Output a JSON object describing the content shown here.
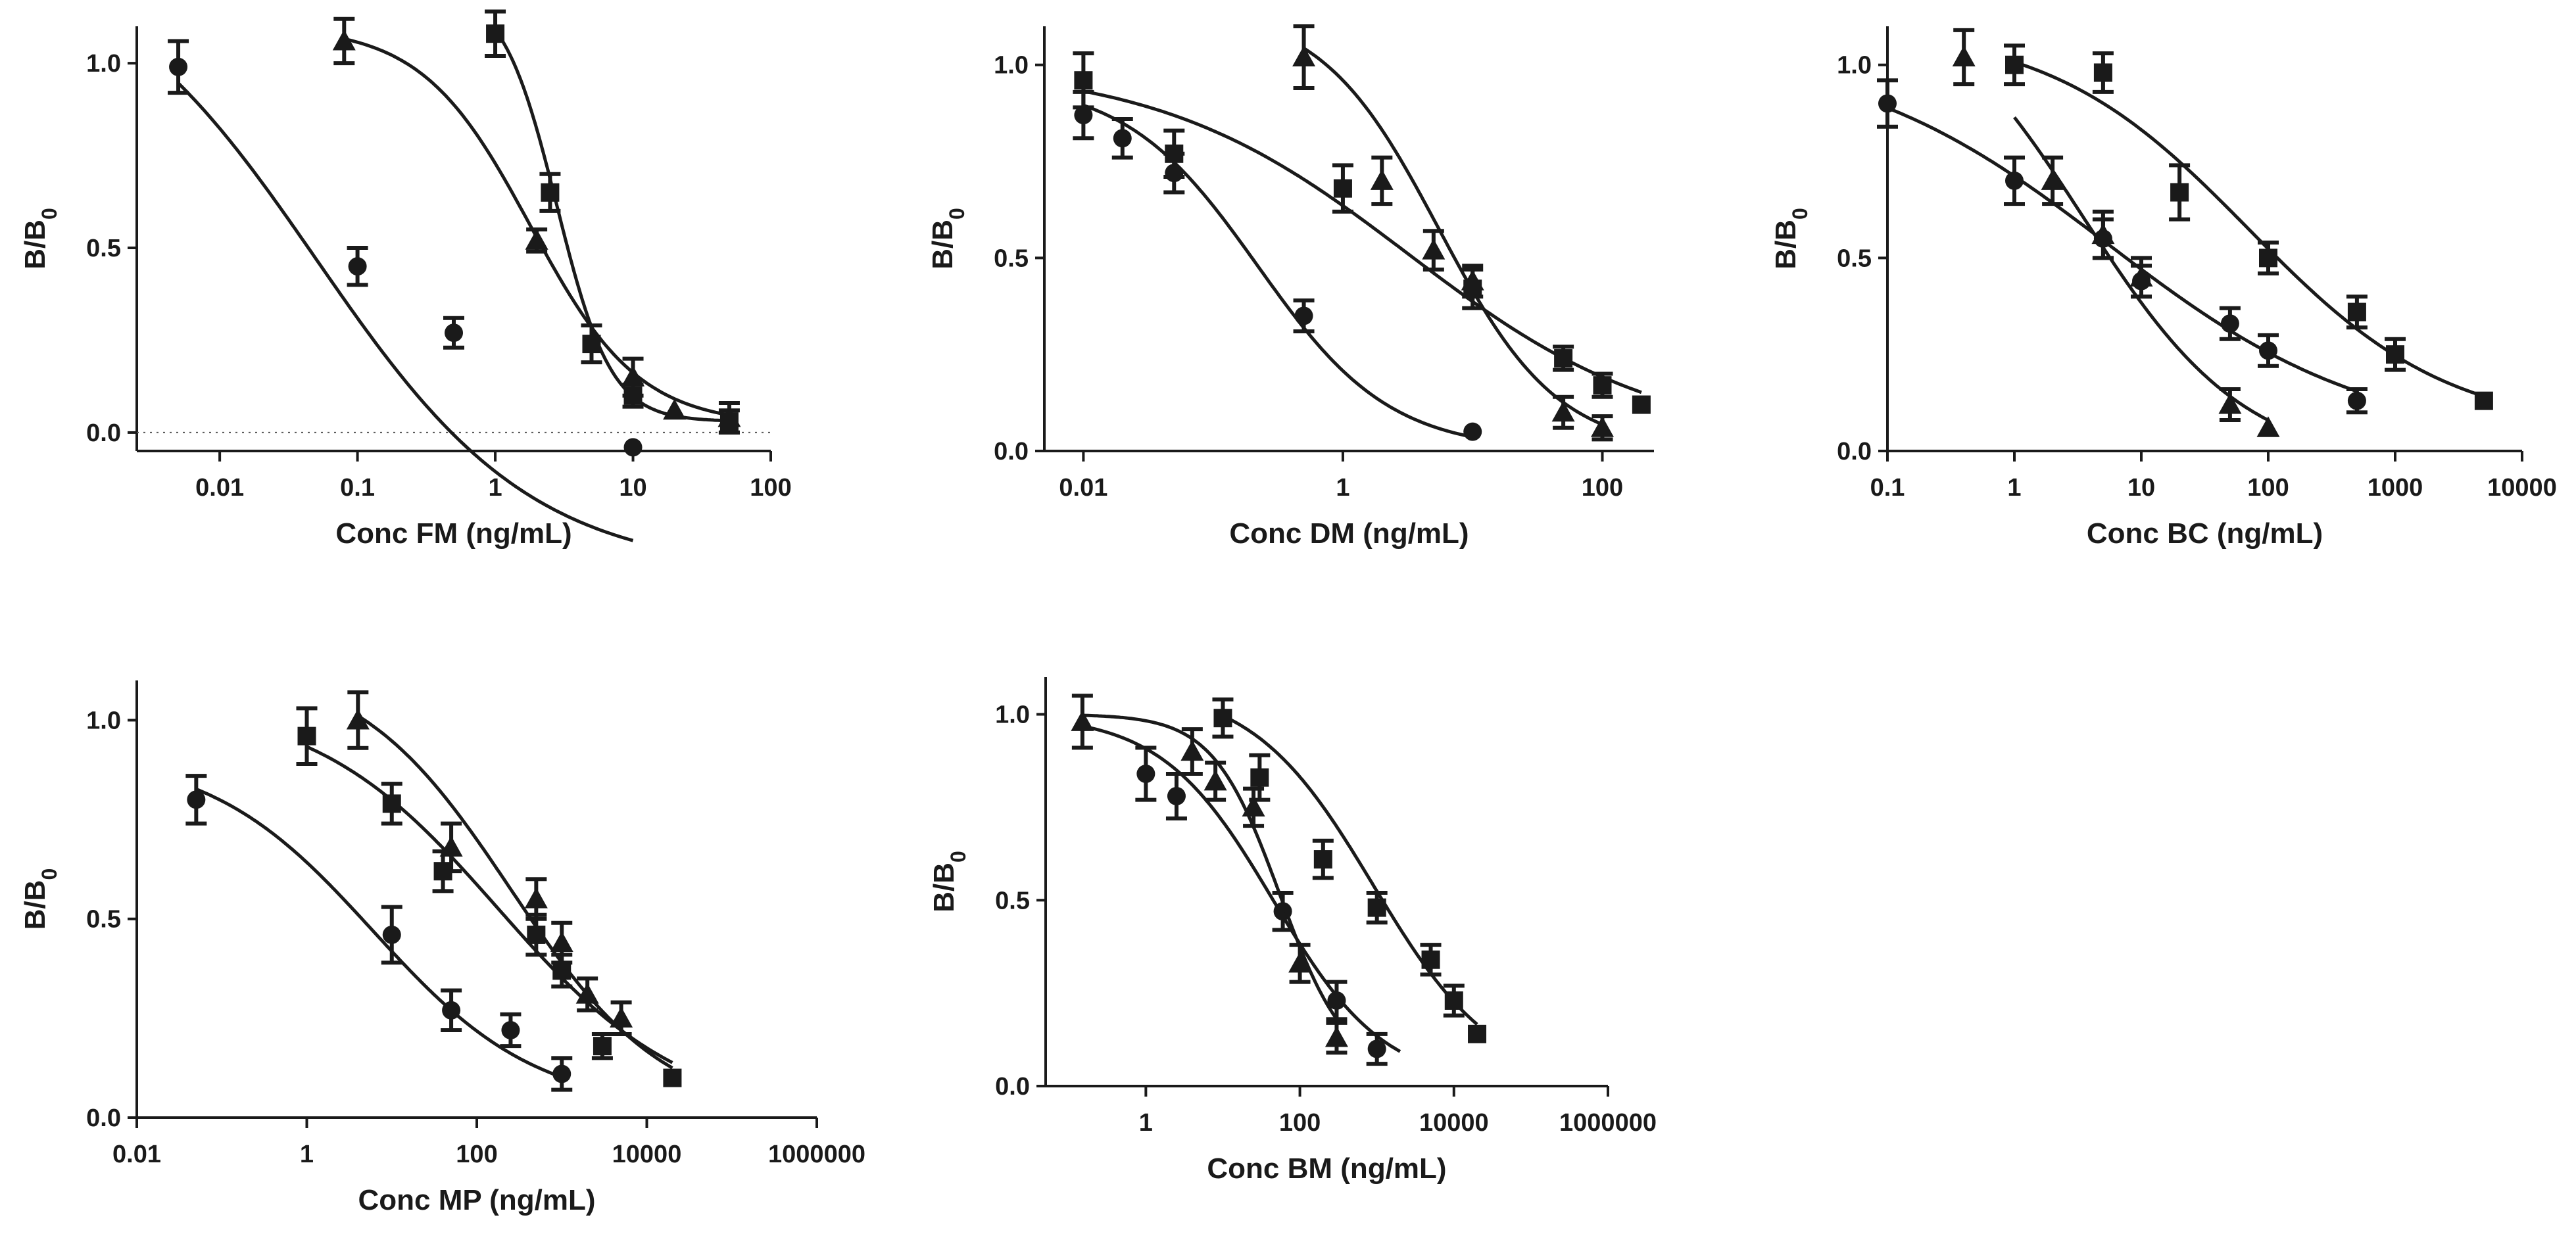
{
  "figure": {
    "background": "#ffffff",
    "ink_color": "#1a1a1a"
  },
  "chart_data": [
    {
      "type": "scatter",
      "x_scale": "log",
      "xlabel": "Conc FM (ng/mL)",
      "ylabel": "B/B",
      "ylabel_subscript": "0",
      "xlim": [
        0.0025,
        100
      ],
      "ylim": [
        -0.05,
        1.1
      ],
      "xticks": [
        0.01,
        0.1,
        1,
        10,
        100
      ],
      "xtick_labels": [
        "0.01",
        "0.1",
        "1",
        "10",
        "100"
      ],
      "yticks": [
        0,
        0.5,
        1
      ],
      "ytick_labels": [
        "0.0",
        "0.5",
        "1.0"
      ],
      "zero_reference_line": true,
      "series": [
        {
          "marker": "circle",
          "x": [
            0.005,
            0.1,
            0.5,
            10
          ],
          "y": [
            0.99,
            0.45,
            0.27,
            -0.04
          ],
          "err": [
            0.07,
            0.05,
            0.04,
            0
          ],
          "fit": {
            "top": 1.32,
            "bottom": -0.38,
            "ec50": 0.05,
            "hill": 0.55
          }
        },
        {
          "marker": "triangle",
          "x": [
            0.08,
            2,
            10,
            20,
            50
          ],
          "y": [
            1.06,
            0.52,
            0.15,
            0.06,
            0.04
          ],
          "err": [
            0.06,
            0.03,
            0.05,
            0,
            0.04
          ],
          "fit": {
            "top": 1.1,
            "bottom": 0.02,
            "ec50": 1.8,
            "hill": 1.1
          },
          "fit_range": [
            0.08,
            50
          ]
        },
        {
          "marker": "square",
          "x": [
            1,
            2.5,
            5,
            10,
            50
          ],
          "y": [
            1.08,
            0.65,
            0.24,
            0.1,
            0.03
          ],
          "err": [
            0.06,
            0.05,
            0.05,
            0.03,
            0.03
          ],
          "fit": {
            "top": 1.2,
            "bottom": 0.03,
            "ec50": 2.8,
            "hill": 2.2
          },
          "fit_range": [
            1,
            50
          ]
        }
      ]
    },
    {
      "type": "scatter",
      "x_scale": "log",
      "xlabel": "Conc DM (ng/mL)",
      "ylabel": "B/B",
      "ylabel_subscript": "0",
      "xlim": [
        0.005,
        250
      ],
      "ylim": [
        0,
        1.1
      ],
      "xticks": [
        0.01,
        1,
        100
      ],
      "xtick_labels": [
        "0.01",
        "1",
        "100"
      ],
      "yticks": [
        0,
        0.5,
        1
      ],
      "ytick_labels": [
        "0.0",
        "0.5",
        "1.0"
      ],
      "zero_reference_line": false,
      "series": [
        {
          "marker": "circle",
          "x": [
            0.01,
            0.02,
            0.05,
            0.5,
            10
          ],
          "y": [
            0.87,
            0.81,
            0.72,
            0.35,
            0.05
          ],
          "err": [
            0.06,
            0.05,
            0.05,
            0.04,
            0
          ],
          "fit": {
            "top": 0.96,
            "bottom": 0.0,
            "ec50": 0.22,
            "hill": 0.85
          },
          "fit_range": [
            0.01,
            10
          ]
        },
        {
          "marker": "triangle",
          "x": [
            0.5,
            2,
            5,
            10,
            50,
            100
          ],
          "y": [
            1.02,
            0.7,
            0.52,
            0.44,
            0.1,
            0.06
          ],
          "err": [
            0.08,
            0.06,
            0.05,
            0.04,
            0.04,
            0.03
          ],
          "fit": {
            "top": 1.15,
            "bottom": 0.0,
            "ec50": 5.5,
            "hill": 0.95
          },
          "fit_range": [
            0.5,
            100
          ]
        },
        {
          "marker": "square",
          "x": [
            0.01,
            0.05,
            1,
            10,
            50,
            100,
            200
          ],
          "y": [
            0.96,
            0.77,
            0.68,
            0.42,
            0.24,
            0.17,
            0.12
          ],
          "err": [
            0.07,
            0.06,
            0.06,
            0.05,
            0.03,
            0.03,
            0
          ],
          "fit": {
            "top": 1.0,
            "bottom": 0.02,
            "ec50": 3.2,
            "hill": 0.45
          },
          "fit_range": [
            0.01,
            200
          ]
        }
      ]
    },
    {
      "type": "scatter",
      "x_scale": "log",
      "xlabel": "Conc BC (ng/mL)",
      "ylabel": "B/B",
      "ylabel_subscript": "0",
      "xlim": [
        0.1,
        10000
      ],
      "ylim": [
        0,
        1.1
      ],
      "xticks": [
        0.1,
        1,
        10,
        100,
        1000,
        10000
      ],
      "xtick_labels": [
        "0.1",
        "1",
        "10",
        "100",
        "1000",
        "10000"
      ],
      "yticks": [
        0,
        0.5,
        1
      ],
      "ytick_labels": [
        "0.0",
        "0.5",
        "1.0"
      ],
      "zero_reference_line": false,
      "series": [
        {
          "marker": "circle",
          "x": [
            0.1,
            1,
            5,
            10,
            50,
            100,
            500
          ],
          "y": [
            0.9,
            0.7,
            0.55,
            0.44,
            0.33,
            0.26,
            0.13
          ],
          "err": [
            0.06,
            0.06,
            0.05,
            0.04,
            0.04,
            0.04,
            0.03
          ],
          "fit": {
            "top": 1.05,
            "bottom": 0.02,
            "ec50": 5.5,
            "hill": 0.42
          },
          "fit_range": [
            0.1,
            500
          ]
        },
        {
          "marker": "triangle",
          "x": [
            0.4,
            2,
            5,
            10,
            50,
            100
          ],
          "y": [
            1.02,
            0.7,
            0.56,
            0.45,
            0.12,
            0.06
          ],
          "err": [
            0.07,
            0.06,
            0.06,
            0.05,
            0.04,
            0
          ],
          "fit": {
            "top": 1.25,
            "bottom": -0.04,
            "ec50": 3.5,
            "hill": 0.68
          },
          "fit_range": [
            1,
            100
          ]
        },
        {
          "marker": "square",
          "x": [
            1,
            5,
            20,
            100,
            500,
            1000,
            5000
          ],
          "y": [
            1.0,
            0.98,
            0.67,
            0.5,
            0.36,
            0.25,
            0.13
          ],
          "err": [
            0.05,
            0.05,
            0.07,
            0.04,
            0.04,
            0.04,
            0
          ],
          "fit": {
            "top": 1.1,
            "bottom": 0.05,
            "ec50": 70,
            "hill": 0.55
          },
          "fit_range": [
            1,
            5000
          ]
        }
      ]
    },
    {
      "type": "scatter",
      "x_scale": "log",
      "xlabel": "Conc MP (ng/mL)",
      "ylabel": "B/B",
      "ylabel_subscript": "0",
      "xlim": [
        0.01,
        1000000
      ],
      "ylim": [
        0,
        1.1
      ],
      "xticks": [
        0.01,
        1,
        100,
        10000,
        1000000
      ],
      "xtick_labels": [
        "0.01",
        "1",
        "100",
        "10000",
        "1000000"
      ],
      "yticks": [
        0,
        0.5,
        1
      ],
      "ytick_labels": [
        "0.0",
        "0.5",
        "1.0"
      ],
      "zero_reference_line": false,
      "series": [
        {
          "marker": "circle",
          "x": [
            0.05,
            10,
            50,
            250,
            1000
          ],
          "y": [
            0.8,
            0.46,
            0.27,
            0.22,
            0.11
          ],
          "err": [
            0.06,
            0.07,
            0.05,
            0.04,
            0.04
          ],
          "fit": {
            "top": 0.92,
            "bottom": 0.02,
            "ec50": 6,
            "hill": 0.45
          },
          "fit_range": [
            0.05,
            1000
          ]
        },
        {
          "marker": "triangle",
          "x": [
            4,
            50,
            500,
            1000,
            2000,
            5000
          ],
          "y": [
            1.0,
            0.68,
            0.55,
            0.44,
            0.31,
            0.25
          ],
          "err": [
            0.07,
            0.06,
            0.05,
            0.05,
            0.04,
            0.04
          ],
          "fit": {
            "top": 1.15,
            "bottom": 0.0,
            "ec50": 250,
            "hill": 0.48
          },
          "fit_range": [
            4,
            20000
          ]
        },
        {
          "marker": "square",
          "x": [
            1,
            10,
            40,
            500,
            1000,
            3000,
            20000
          ],
          "y": [
            0.96,
            0.79,
            0.62,
            0.46,
            0.37,
            0.18,
            0.1
          ],
          "err": [
            0.07,
            0.05,
            0.05,
            0.05,
            0.04,
            0.03,
            0
          ],
          "fit": {
            "top": 1.05,
            "bottom": 0.0,
            "ec50": 180,
            "hill": 0.4
          },
          "fit_range": [
            1,
            20000
          ]
        }
      ]
    },
    {
      "type": "scatter",
      "x_scale": "log",
      "xlabel": "Conc BM (ng/mL)",
      "ylabel": "B/B",
      "ylabel_subscript": "0",
      "xlim": [
        0.05,
        1000000
      ],
      "ylim": [
        0,
        1.1
      ],
      "xticks": [
        1,
        100,
        10000,
        1000000
      ],
      "xtick_labels": [
        "1",
        "100",
        "10000",
        "1000000"
      ],
      "yticks": [
        0,
        0.5,
        1
      ],
      "ytick_labels": [
        "0.0",
        "0.5",
        "1.0"
      ],
      "zero_reference_line": false,
      "series": [
        {
          "marker": "circle",
          "x": [
            1,
            2.5,
            60,
            300,
            1000
          ],
          "y": [
            0.84,
            0.78,
            0.47,
            0.23,
            0.1
          ],
          "err": [
            0.07,
            0.06,
            0.05,
            0.05,
            0.04
          ],
          "fit": {
            "top": 1.0,
            "bottom": 0.0,
            "ec50": 45,
            "hill": 0.6
          },
          "fit_range": [
            0.15,
            2000
          ]
        },
        {
          "marker": "triangle",
          "x": [
            0.15,
            4,
            8,
            25,
            100,
            300
          ],
          "y": [
            0.98,
            0.9,
            0.82,
            0.75,
            0.33,
            0.13
          ],
          "err": [
            0.07,
            0.06,
            0.05,
            0.05,
            0.05,
            0.04
          ],
          "fit": {
            "top": 1.0,
            "bottom": 0.03,
            "ec50": 55,
            "hill": 1.0
          },
          "fit_range": [
            0.15,
            300
          ]
        },
        {
          "marker": "square",
          "x": [
            10,
            30,
            200,
            1000,
            5000,
            10000,
            20000
          ],
          "y": [
            0.99,
            0.83,
            0.61,
            0.48,
            0.34,
            0.23,
            0.14
          ],
          "err": [
            0.05,
            0.06,
            0.05,
            0.04,
            0.04,
            0.04,
            0
          ],
          "fit": {
            "top": 1.08,
            "bottom": 0.0,
            "ec50": 900,
            "hill": 0.55
          },
          "fit_range": [
            10,
            20000
          ]
        }
      ]
    }
  ]
}
